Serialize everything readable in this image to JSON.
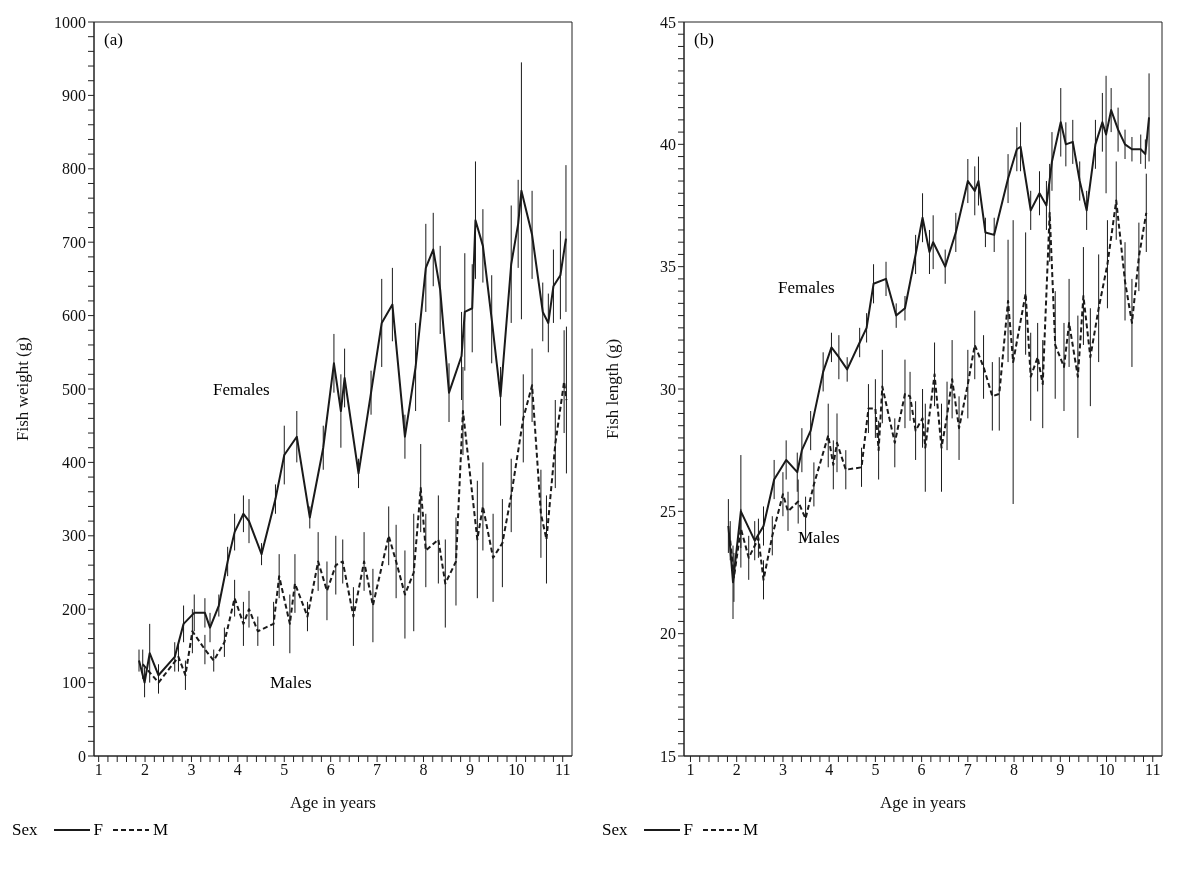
{
  "chart_data": [
    {
      "type": "line",
      "title": null,
      "xlabel": "Age in years",
      "ylabel": "Fish weight (g)",
      "legend_title": "Sex",
      "legend": "bottom",
      "marker": "none",
      "annotations": [
        "(a)",
        "Females",
        "Males"
      ],
      "xlim": [
        0.9,
        11.2
      ],
      "ylim": [
        0,
        1000
      ],
      "xticks": [
        1,
        {
          "value": 1.2,
          "label": null
        },
        {
          "value": 1.4,
          "label": null
        },
        {
          "value": 1.6,
          "label": null
        },
        {
          "value": 1.8,
          "label": null
        },
        2,
        {
          "value": 2.2,
          "label": null
        },
        {
          "value": 2.4,
          "label": null
        },
        {
          "value": 2.6,
          "label": null
        },
        {
          "value": 2.8,
          "label": null
        },
        3,
        {
          "value": 3.2,
          "label": null
        },
        {
          "value": 3.4,
          "label": null
        },
        {
          "value": 3.6,
          "label": null
        },
        {
          "value": 3.8,
          "label": null
        },
        4,
        {
          "value": 4.2,
          "label": null
        },
        {
          "value": 4.4,
          "label": null
        },
        {
          "value": 4.6,
          "label": null
        },
        {
          "value": 4.8,
          "label": null
        },
        5,
        {
          "value": 5.2,
          "label": null
        },
        {
          "value": 5.4,
          "label": null
        },
        {
          "value": 5.6,
          "label": null
        },
        {
          "value": 5.8,
          "label": null
        },
        6,
        {
          "value": 6.2,
          "label": null
        },
        {
          "value": 6.4,
          "label": null
        },
        {
          "value": 6.6,
          "label": null
        },
        {
          "value": 6.8,
          "label": null
        },
        7,
        {
          "value": 7.2,
          "label": null
        },
        {
          "value": 7.4,
          "label": null
        },
        {
          "value": 7.6,
          "label": null
        },
        {
          "value": 7.8,
          "label": null
        },
        8,
        {
          "value": 8.2,
          "label": null
        },
        {
          "value": 8.4,
          "label": null
        },
        {
          "value": 8.6,
          "label": null
        },
        {
          "value": 8.8,
          "label": null
        },
        9,
        {
          "value": 9.2,
          "label": null
        },
        {
          "value": 9.4,
          "label": null
        },
        {
          "value": 9.6,
          "label": null
        },
        {
          "value": 9.8,
          "label": null
        },
        10,
        {
          "value": 10.2,
          "label": null
        },
        {
          "value": 10.4,
          "label": null
        },
        {
          "value": 10.6,
          "label": null
        },
        {
          "value": 10.8,
          "label": null
        },
        11
      ],
      "yticks": [
        0,
        {
          "value": 20,
          "label": null
        },
        {
          "value": 40,
          "label": null
        },
        {
          "value": 60,
          "label": null
        },
        {
          "value": 80,
          "label": null
        },
        100,
        {
          "value": 120,
          "label": null
        },
        {
          "value": 140,
          "label": null
        },
        {
          "value": 160,
          "label": null
        },
        {
          "value": 180,
          "label": null
        },
        200,
        {
          "value": 220,
          "label": null
        },
        {
          "value": 240,
          "label": null
        },
        {
          "value": 260,
          "label": null
        },
        {
          "value": 280,
          "label": null
        },
        300,
        {
          "value": 320,
          "label": null
        },
        {
          "value": 340,
          "label": null
        },
        {
          "value": 360,
          "label": null
        },
        {
          "value": 380,
          "label": null
        },
        400,
        {
          "value": 420,
          "label": null
        },
        {
          "value": 440,
          "label": null
        },
        {
          "value": 460,
          "label": null
        },
        {
          "value": 480,
          "label": null
        },
        500,
        {
          "value": 520,
          "label": null
        },
        {
          "value": 540,
          "label": null
        },
        {
          "value": 560,
          "label": null
        },
        {
          "value": 580,
          "label": null
        },
        600,
        {
          "value": 620,
          "label": null
        },
        {
          "value": 640,
          "label": null
        },
        {
          "value": 660,
          "label": null
        },
        {
          "value": 680,
          "label": null
        },
        700,
        {
          "value": 720,
          "label": null
        },
        {
          "value": 740,
          "label": null
        },
        {
          "value": 760,
          "label": null
        },
        {
          "value": 780,
          "label": null
        },
        800,
        {
          "value": 820,
          "label": null
        },
        {
          "value": 840,
          "label": null
        },
        {
          "value": 860,
          "label": null
        },
        {
          "value": 880,
          "label": null
        },
        900,
        {
          "value": 920,
          "label": null
        },
        {
          "value": 940,
          "label": null
        },
        {
          "value": 960,
          "label": null
        },
        {
          "value": 980,
          "label": null
        },
        1000
      ],
      "series": [
        {
          "name": "F",
          "color": "#1a1a1a",
          "line_style": "solid",
          "x": [
            1.87,
            1.99,
            2.1,
            2.29,
            2.64,
            2.83,
            3.06,
            3.29,
            3.4,
            3.59,
            3.78,
            3.93,
            4.12,
            4.24,
            4.51,
            4.81,
            5.0,
            5.27,
            5.55,
            5.84,
            6.07,
            6.22,
            6.3,
            6.6,
            6.87,
            7.1,
            7.33,
            7.6,
            7.83,
            8.05,
            8.21,
            8.36,
            8.55,
            8.82,
            8.89,
            9.05,
            9.12,
            9.28,
            9.47,
            9.66,
            9.89,
            10.04,
            10.11,
            10.34,
            10.57,
            10.69,
            10.8,
            10.95,
            11.07
          ],
          "values": [
            130,
            100,
            140,
            110,
            135,
            180,
            195,
            195,
            175,
            205,
            265,
            305,
            330,
            320,
            275,
            350,
            410,
            435,
            325,
            420,
            535,
            470,
            515,
            385,
            495,
            590,
            615,
            435,
            530,
            665,
            690,
            635,
            495,
            545,
            605,
            610,
            730,
            695,
            595,
            490,
            670,
            725,
            770,
            710,
            605,
            590,
            640,
            655,
            705
          ],
          "errors": [
            15,
            20,
            40,
            15,
            20,
            25,
            25,
            20,
            20,
            15,
            20,
            25,
            25,
            30,
            15,
            20,
            40,
            35,
            15,
            30,
            40,
            50,
            40,
            20,
            30,
            60,
            50,
            30,
            60,
            60,
            50,
            60,
            40,
            60,
            80,
            60,
            80,
            50,
            60,
            40,
            80,
            60,
            175,
            60,
            40,
            40,
            50,
            60,
            100
          ]
        },
        {
          "name": "M",
          "color": "#1a1a1a",
          "line_style": "dashed",
          "x": [
            1.95,
            2.29,
            2.72,
            2.87,
            3.02,
            3.29,
            3.48,
            3.71,
            3.93,
            4.12,
            4.24,
            4.43,
            4.77,
            4.89,
            5.12,
            5.23,
            5.5,
            5.73,
            5.92,
            6.11,
            6.26,
            6.49,
            6.72,
            6.91,
            7.25,
            7.41,
            7.6,
            7.79,
            7.94,
            8.05,
            8.32,
            8.47,
            8.7,
            8.85,
            9.16,
            9.28,
            9.5,
            9.7,
            9.89,
            10.15,
            10.34,
            10.53,
            10.65,
            10.84,
            11.03,
            11.08
          ],
          "values": [
            125,
            100,
            135,
            110,
            170,
            145,
            130,
            155,
            215,
            180,
            200,
            170,
            180,
            245,
            180,
            235,
            190,
            265,
            225,
            260,
            265,
            190,
            265,
            205,
            300,
            265,
            220,
            250,
            365,
            280,
            295,
            235,
            265,
            470,
            295,
            340,
            270,
            290,
            355,
            460,
            505,
            330,
            295,
            425,
            510,
            485
          ],
          "errors": [
            20,
            15,
            20,
            20,
            30,
            20,
            15,
            20,
            25,
            30,
            25,
            20,
            30,
            30,
            40,
            40,
            20,
            40,
            40,
            40,
            30,
            40,
            40,
            50,
            40,
            50,
            60,
            80,
            60,
            50,
            60,
            60,
            60,
            60,
            80,
            60,
            60,
            60,
            50,
            60,
            50,
            60,
            60,
            60,
            70,
            100
          ]
        }
      ]
    },
    {
      "type": "line",
      "title": null,
      "xlabel": "Age in years",
      "ylabel": "Fish length (g)",
      "legend_title": "Sex",
      "legend": "bottom",
      "marker": "none",
      "annotations": [
        "(b)",
        "Females",
        "Males"
      ],
      "xlim": [
        0.86,
        11.2
      ],
      "ylim": [
        15,
        45
      ],
      "xticks": [
        1,
        {
          "value": 1.2,
          "label": null
        },
        {
          "value": 1.4,
          "label": null
        },
        {
          "value": 1.6,
          "label": null
        },
        {
          "value": 1.8,
          "label": null
        },
        2,
        {
          "value": 2.2,
          "label": null
        },
        {
          "value": 2.4,
          "label": null
        },
        {
          "value": 2.6,
          "label": null
        },
        {
          "value": 2.8,
          "label": null
        },
        3,
        {
          "value": 3.2,
          "label": null
        },
        {
          "value": 3.4,
          "label": null
        },
        {
          "value": 3.6,
          "label": null
        },
        {
          "value": 3.8,
          "label": null
        },
        4,
        {
          "value": 4.2,
          "label": null
        },
        {
          "value": 4.4,
          "label": null
        },
        {
          "value": 4.6,
          "label": null
        },
        {
          "value": 4.8,
          "label": null
        },
        5,
        {
          "value": 5.2,
          "label": null
        },
        {
          "value": 5.4,
          "label": null
        },
        {
          "value": 5.6,
          "label": null
        },
        {
          "value": 5.8,
          "label": null
        },
        6,
        {
          "value": 6.2,
          "label": null
        },
        {
          "value": 6.4,
          "label": null
        },
        {
          "value": 6.6,
          "label": null
        },
        {
          "value": 6.8,
          "label": null
        },
        7,
        {
          "value": 7.2,
          "label": null
        },
        {
          "value": 7.4,
          "label": null
        },
        {
          "value": 7.6,
          "label": null
        },
        {
          "value": 7.8,
          "label": null
        },
        8,
        {
          "value": 8.2,
          "label": null
        },
        {
          "value": 8.4,
          "label": null
        },
        {
          "value": 8.6,
          "label": null
        },
        {
          "value": 8.8,
          "label": null
        },
        9,
        {
          "value": 9.2,
          "label": null
        },
        {
          "value": 9.4,
          "label": null
        },
        {
          "value": 9.6,
          "label": null
        },
        {
          "value": 9.8,
          "label": null
        },
        10,
        {
          "value": 10.2,
          "label": null
        },
        {
          "value": 10.4,
          "label": null
        },
        {
          "value": 10.6,
          "label": null
        },
        {
          "value": 10.8,
          "label": null
        },
        11
      ],
      "yticks": [
        15,
        {
          "value": 15.5,
          "label": null
        },
        {
          "value": 16,
          "label": null
        },
        {
          "value": 16.5,
          "label": null
        },
        {
          "value": 17,
          "label": null
        },
        {
          "value": 17.5,
          "label": null
        },
        {
          "value": 18,
          "label": null
        },
        {
          "value": 18.5,
          "label": null
        },
        {
          "value": 19,
          "label": null
        },
        {
          "value": 19.5,
          "label": null
        },
        20,
        {
          "value": 20.5,
          "label": null
        },
        {
          "value": 21,
          "label": null
        },
        {
          "value": 21.5,
          "label": null
        },
        {
          "value": 22,
          "label": null
        },
        {
          "value": 22.5,
          "label": null
        },
        {
          "value": 23,
          "label": null
        },
        {
          "value": 23.5,
          "label": null
        },
        {
          "value": 24,
          "label": null
        },
        {
          "value": 24.5,
          "label": null
        },
        25,
        {
          "value": 25.5,
          "label": null
        },
        {
          "value": 26,
          "label": null
        },
        {
          "value": 26.5,
          "label": null
        },
        {
          "value": 27,
          "label": null
        },
        {
          "value": 27.5,
          "label": null
        },
        {
          "value": 28,
          "label": null
        },
        {
          "value": 28.5,
          "label": null
        },
        {
          "value": 29,
          "label": null
        },
        {
          "value": 29.5,
          "label": null
        },
        30,
        {
          "value": 30.5,
          "label": null
        },
        {
          "value": 31,
          "label": null
        },
        {
          "value": 31.5,
          "label": null
        },
        {
          "value": 32,
          "label": null
        },
        {
          "value": 32.5,
          "label": null
        },
        {
          "value": 33,
          "label": null
        },
        {
          "value": 33.5,
          "label": null
        },
        {
          "value": 34,
          "label": null
        },
        {
          "value": 34.5,
          "label": null
        },
        35,
        {
          "value": 35.5,
          "label": null
        },
        {
          "value": 36,
          "label": null
        },
        {
          "value": 36.5,
          "label": null
        },
        {
          "value": 37,
          "label": null
        },
        {
          "value": 37.5,
          "label": null
        },
        {
          "value": 38,
          "label": null
        },
        {
          "value": 38.5,
          "label": null
        },
        {
          "value": 39,
          "label": null
        },
        {
          "value": 39.5,
          "label": null
        },
        40,
        {
          "value": 40.5,
          "label": null
        },
        {
          "value": 41,
          "label": null
        },
        {
          "value": 41.5,
          "label": null
        },
        {
          "value": 42,
          "label": null
        },
        {
          "value": 42.5,
          "label": null
        },
        {
          "value": 43,
          "label": null
        },
        {
          "value": 43.5,
          "label": null
        },
        {
          "value": 44,
          "label": null
        },
        {
          "value": 44.5,
          "label": null
        },
        45
      ],
      "series": [
        {
          "name": "F",
          "color": "#1a1a1a",
          "line_style": "solid",
          "x": [
            1.82,
            1.92,
            2.09,
            2.39,
            2.58,
            2.81,
            3.07,
            3.31,
            3.41,
            3.6,
            3.87,
            4.05,
            4.21,
            4.39,
            4.66,
            4.81,
            4.96,
            5.23,
            5.45,
            5.64,
            5.87,
            6.02,
            6.17,
            6.25,
            6.51,
            6.74,
            7.0,
            7.15,
            7.23,
            7.38,
            7.57,
            7.87,
            8.06,
            8.14,
            8.36,
            8.55,
            8.7,
            8.82,
            9.01,
            9.12,
            9.27,
            9.42,
            9.57,
            9.76,
            9.91,
            9.99,
            10.1,
            10.25,
            10.4,
            10.55,
            10.74,
            10.84,
            10.92
          ],
          "values": [
            24.4,
            22.1,
            25.0,
            23.8,
            24.4,
            26.3,
            27.1,
            26.6,
            27.5,
            28.3,
            30.7,
            31.7,
            31.3,
            30.8,
            31.9,
            32.5,
            34.3,
            34.5,
            33.0,
            33.3,
            35.5,
            37.0,
            35.6,
            36.0,
            35.0,
            36.4,
            38.5,
            38.1,
            38.5,
            36.4,
            36.3,
            38.6,
            39.8,
            39.9,
            37.3,
            38.0,
            37.5,
            39.3,
            40.9,
            40.0,
            40.1,
            38.5,
            37.3,
            40.0,
            40.9,
            40.4,
            41.4,
            40.6,
            40.0,
            39.8,
            39.8,
            39.6,
            41.1
          ],
          "errors": [
            1.1,
            1.5,
            2.3,
            0.8,
            0.8,
            0.8,
            0.8,
            0.8,
            0.9,
            0.8,
            0.8,
            0.6,
            0.9,
            0.5,
            0.6,
            0.6,
            0.8,
            0.7,
            0.5,
            0.5,
            0.8,
            1.0,
            0.9,
            1.1,
            0.7,
            0.8,
            0.9,
            1.0,
            1.0,
            0.6,
            0.7,
            1.0,
            0.9,
            1.0,
            0.8,
            0.9,
            1.0,
            1.2,
            1.4,
            0.9,
            0.9,
            0.8,
            0.8,
            1.0,
            1.2,
            2.4,
            0.9,
            0.9,
            0.6,
            0.5,
            0.6,
            0.6,
            1.8
          ]
        },
        {
          "name": "M",
          "color": "#1a1a1a",
          "line_style": "dashed",
          "x": [
            1.86,
            1.94,
            2.09,
            2.26,
            2.47,
            2.58,
            2.77,
            3.0,
            3.11,
            3.33,
            3.49,
            3.67,
            3.98,
            4.09,
            4.17,
            4.36,
            4.7,
            4.85,
            5.0,
            5.07,
            5.15,
            5.42,
            5.64,
            5.75,
            5.87,
            6.02,
            6.08,
            6.28,
            6.43,
            6.55,
            6.66,
            6.81,
            7.0,
            7.15,
            7.34,
            7.53,
            7.68,
            7.87,
            7.98,
            8.25,
            8.36,
            8.51,
            8.62,
            8.77,
            8.89,
            9.08,
            9.19,
            9.38,
            9.5,
            9.65,
            9.83,
            10.02,
            10.21,
            10.4,
            10.55,
            10.7,
            10.86
          ],
          "values": [
            23.8,
            22.3,
            24.3,
            23.1,
            23.9,
            22.2,
            24.0,
            25.7,
            25.0,
            25.4,
            24.7,
            26.1,
            28.1,
            26.9,
            27.8,
            26.7,
            26.8,
            29.2,
            29.2,
            27.5,
            30.1,
            27.8,
            29.8,
            29.7,
            28.3,
            28.8,
            27.6,
            30.6,
            27.6,
            28.9,
            30.4,
            28.4,
            30.2,
            31.8,
            30.9,
            29.7,
            29.8,
            33.6,
            31.1,
            33.9,
            30.5,
            31.3,
            30.2,
            37.2,
            31.8,
            30.9,
            32.7,
            30.5,
            33.8,
            31.3,
            33.3,
            35.1,
            37.7,
            34.4,
            32.7,
            35.4,
            37.2
          ],
          "errors": [
            0.8,
            1.0,
            0.8,
            0.9,
            0.8,
            0.8,
            0.8,
            0.9,
            0.8,
            0.9,
            0.9,
            0.9,
            1.3,
            1.0,
            1.2,
            0.8,
            0.8,
            1.0,
            1.2,
            1.2,
            1.5,
            1.0,
            1.4,
            1.0,
            1.2,
            1.2,
            1.8,
            1.3,
            1.8,
            1.4,
            1.6,
            1.3,
            1.4,
            1.4,
            1.3,
            1.4,
            1.5,
            2.5,
            5.8,
            2.5,
            1.8,
            1.4,
            1.8,
            2.0,
            2.2,
            1.8,
            1.8,
            2.5,
            2.0,
            2.0,
            2.2,
            1.8,
            1.6,
            1.6,
            1.8,
            1.4,
            1.6
          ]
        }
      ]
    }
  ]
}
